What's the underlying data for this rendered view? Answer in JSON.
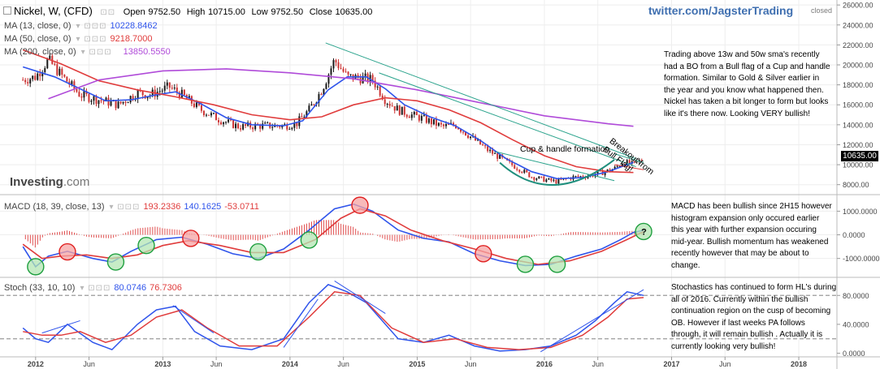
{
  "header": {
    "symbol": "Nickel, W, (CFD)",
    "open_label": "Open",
    "open": "9752.50",
    "high_label": "High",
    "high": "10715.00",
    "low_label": "Low",
    "low": "9752.50",
    "close_label": "Close",
    "close": "10635.00"
  },
  "twitter_handle": "twitter.com/JagsterTrading",
  "market_status": "closed",
  "logo": {
    "main": "Investing",
    "suffix": ".com"
  },
  "legends": {
    "ma13": {
      "label": "MA (13, close, 0)",
      "value": "10228.8462",
      "color": "#2f54eb"
    },
    "ma50": {
      "label": "MA (50, close, 0)",
      "value": "9218.7000",
      "color": "#e03c3c"
    },
    "ma200": {
      "label": "MA (200, close, 0)",
      "value": "13850.5550",
      "color": "#b04bd9"
    },
    "macd": {
      "label": "MACD (18, 39, close, 13)",
      "v1": "193.2336",
      "v2": "140.1625",
      "v3": "-53.0711"
    },
    "stoch": {
      "label": "Stoch (33, 10, 10)",
      "v1": "80.0746",
      "v2": "76.7306"
    }
  },
  "annotations": {
    "main_note": "Trading above 13w and 50w sma's recently had a BO from a Bull flag of a Cup and handle formation. Similar to Gold & Silver earlier in the year and you know what happened then. Nickel has taken a bit longer to form but looks like it's there now. Looking VERY bullish!",
    "macd_note": "MACD has been bullish since 2H15 however histogram expansion only occured earlier this year with further expansion occuring  mid-year. Bullish momentum has weakened recently however that may be about to change.",
    "stoch_note": "Stochastics has continued to form HL's during all of 2016. Currently within the bullish continuation region on the cusp of becoming OB. However if last weeks PA follows through, it will remain bullish . Actually it is currently looking very bullish!",
    "cup_label": "Cup & handle formation",
    "breakout_label": "Breakout from Bull Flag!",
    "question_mark": "?"
  },
  "price_label": "10635.00",
  "colors": {
    "bull": "#1a1a1a",
    "bear": "#cc3333",
    "ma13": "#2f54eb",
    "ma50": "#e03c3c",
    "ma200": "#b04bd9",
    "trend": "#2aa38c",
    "cup": "#1f8f7d",
    "circle_red_fill": "#f5a3a3",
    "circle_red_edge": "#e02020",
    "circle_green_fill": "#b3e6b3",
    "circle_green_edge": "#1f9f3f"
  },
  "chart_data": [
    {
      "type": "candlestick",
      "title": "Nickel, W, (CFD)",
      "x_ticks": [
        "2012",
        "Jun",
        "2013",
        "Jun",
        "2014",
        "Jun",
        "2015",
        "Jun",
        "2016",
        "Jun",
        "2017",
        "Jun",
        "2018"
      ],
      "y_ticks": [
        "26000.00",
        "24000.00",
        "22000.00",
        "20000.00",
        "18000.00",
        "16000.00",
        "14000.00",
        "12000.00",
        "10000.00",
        "8000.00"
      ],
      "ylim": [
        7000,
        26500
      ],
      "close_path_approx": [
        [
          2011.9,
          18500
        ],
        [
          2012.0,
          18800
        ],
        [
          2012.1,
          20500
        ],
        [
          2012.2,
          19000
        ],
        [
          2012.35,
          17000
        ],
        [
          2012.5,
          16500
        ],
        [
          2012.65,
          16000
        ],
        [
          2012.8,
          17200
        ],
        [
          2012.9,
          17000
        ],
        [
          2013.05,
          17800
        ],
        [
          2013.15,
          17000
        ],
        [
          2013.3,
          15500
        ],
        [
          2013.45,
          14500
        ],
        [
          2013.6,
          13800
        ],
        [
          2013.75,
          13900
        ],
        [
          2013.95,
          13900
        ],
        [
          2014.05,
          14100
        ],
        [
          2014.15,
          15500
        ],
        [
          2014.25,
          17500
        ],
        [
          2014.35,
          20500
        ],
        [
          2014.45,
          18800
        ],
        [
          2014.55,
          18700
        ],
        [
          2014.65,
          18500
        ],
        [
          2014.75,
          16500
        ],
        [
          2014.85,
          15500
        ],
        [
          2014.95,
          15000
        ],
        [
          2015.05,
          14600
        ],
        [
          2015.2,
          13800
        ],
        [
          2015.3,
          14000
        ],
        [
          2015.4,
          13000
        ],
        [
          2015.55,
          11500
        ],
        [
          2015.7,
          10300
        ],
        [
          2015.8,
          9600
        ],
        [
          2015.9,
          8800
        ],
        [
          2016.0,
          8500
        ],
        [
          2016.1,
          8300
        ],
        [
          2016.2,
          8700
        ],
        [
          2016.35,
          8900
        ],
        [
          2016.45,
          9200
        ],
        [
          2016.55,
          9600
        ],
        [
          2016.62,
          10300
        ],
        [
          2016.7,
          10000
        ],
        [
          2016.78,
          10635
        ]
      ],
      "series": [
        {
          "name": "MA (13, close, 0)",
          "points": [
            [
              2011.9,
              19800
            ],
            [
              2012.15,
              18800
            ],
            [
              2012.35,
              17600
            ],
            [
              2012.55,
              16400
            ],
            [
              2012.75,
              16500
            ],
            [
              2012.95,
              17000
            ],
            [
              2013.1,
              17300
            ],
            [
              2013.3,
              16100
            ],
            [
              2013.5,
              14700
            ],
            [
              2013.7,
              14000
            ],
            [
              2013.95,
              13900
            ],
            [
              2014.1,
              14400
            ],
            [
              2014.3,
              17500
            ],
            [
              2014.45,
              18800
            ],
            [
              2014.6,
              18800
            ],
            [
              2014.75,
              17600
            ],
            [
              2014.9,
              16000
            ],
            [
              2015.1,
              14800
            ],
            [
              2015.3,
              13900
            ],
            [
              2015.5,
              12400
            ],
            [
              2015.7,
              10600
            ],
            [
              2015.9,
              9300
            ],
            [
              2016.1,
              8600
            ],
            [
              2016.3,
              8700
            ],
            [
              2016.5,
              9300
            ],
            [
              2016.7,
              10229
            ]
          ]
        },
        {
          "name": "MA (50, close, 0)",
          "points": [
            [
              2011.9,
              21500
            ],
            [
              2012.2,
              20100
            ],
            [
              2012.5,
              18400
            ],
            [
              2012.8,
              17500
            ],
            [
              2013.1,
              16800
            ],
            [
              2013.4,
              16000
            ],
            [
              2013.7,
              15000
            ],
            [
              2014.0,
              14500
            ],
            [
              2014.25,
              14800
            ],
            [
              2014.5,
              16000
            ],
            [
              2014.75,
              16700
            ],
            [
              2015.0,
              16400
            ],
            [
              2015.25,
              15500
            ],
            [
              2015.5,
              14200
            ],
            [
              2015.75,
              12500
            ],
            [
              2016.0,
              10900
            ],
            [
              2016.25,
              9800
            ],
            [
              2016.5,
              9300
            ],
            [
              2016.7,
              9219
            ]
          ]
        },
        {
          "name": "MA (200, close, 0)",
          "points": [
            [
              2012.1,
              16600
            ],
            [
              2012.5,
              18500
            ],
            [
              2013.0,
              19400
            ],
            [
              2013.5,
              19600
            ],
            [
              2014.0,
              19200
            ],
            [
              2014.5,
              18600
            ],
            [
              2015.0,
              17500
            ],
            [
              2015.5,
              16200
            ],
            [
              2016.0,
              14900
            ],
            [
              2016.5,
              14100
            ],
            [
              2016.7,
              13851
            ]
          ]
        }
      ]
    },
    {
      "type": "line",
      "title": "MACD (18, 39, close, 13)",
      "y_ticks": [
        "1000.0000",
        "0.0000",
        "-1000.0000"
      ],
      "ylim": [
        -1800,
        1700
      ],
      "series": [
        {
          "name": "MACD",
          "points": [
            [
              2011.9,
              -500
            ],
            [
              2012.0,
              -1350
            ],
            [
              2012.1,
              -900
            ],
            [
              2012.25,
              -700
            ],
            [
              2012.45,
              -1000
            ],
            [
              2012.6,
              -1150
            ],
            [
              2012.75,
              -700
            ],
            [
              2012.95,
              -200
            ],
            [
              2013.15,
              -100
            ],
            [
              2013.35,
              -400
            ],
            [
              2013.55,
              -800
            ],
            [
              2013.75,
              -1000
            ],
            [
              2013.95,
              -600
            ],
            [
              2014.15,
              200
            ],
            [
              2014.35,
              1100
            ],
            [
              2014.5,
              1300
            ],
            [
              2014.65,
              1000
            ],
            [
              2014.85,
              200
            ],
            [
              2015.05,
              -150
            ],
            [
              2015.25,
              -300
            ],
            [
              2015.45,
              -800
            ],
            [
              2015.65,
              -1100
            ],
            [
              2015.85,
              -1300
            ],
            [
              2016.05,
              -1250
            ],
            [
              2016.25,
              -900
            ],
            [
              2016.45,
              -600
            ],
            [
              2016.6,
              -200
            ],
            [
              2016.7,
              100
            ],
            [
              2016.78,
              193
            ]
          ]
        },
        {
          "name": "Signal",
          "points": [
            [
              2011.9,
              -400
            ],
            [
              2012.05,
              -1000
            ],
            [
              2012.2,
              -900
            ],
            [
              2012.4,
              -850
            ],
            [
              2012.6,
              -1000
            ],
            [
              2012.8,
              -850
            ],
            [
              2013.0,
              -450
            ],
            [
              2013.2,
              -250
            ],
            [
              2013.45,
              -450
            ],
            [
              2013.7,
              -750
            ],
            [
              2013.95,
              -750
            ],
            [
              2014.2,
              -200
            ],
            [
              2014.4,
              700
            ],
            [
              2014.55,
              1100
            ],
            [
              2014.75,
              800
            ],
            [
              2014.95,
              200
            ],
            [
              2015.2,
              -250
            ],
            [
              2015.45,
              -600
            ],
            [
              2015.7,
              -1000
            ],
            [
              2015.95,
              -1250
            ],
            [
              2016.2,
              -1100
            ],
            [
              2016.45,
              -700
            ],
            [
              2016.65,
              -200
            ],
            [
              2016.78,
              140
            ]
          ]
        }
      ]
    },
    {
      "type": "line",
      "title": "Stoch (33, 10, 10)",
      "y_ticks": [
        "80.0000",
        "40.0000",
        "0.0000"
      ],
      "ylim": [
        -5,
        105
      ],
      "series": [
        {
          "name": "%K",
          "points": [
            [
              2011.9,
              35
            ],
            [
              2012.0,
              20
            ],
            [
              2012.1,
              15
            ],
            [
              2012.25,
              40
            ],
            [
              2012.45,
              15
            ],
            [
              2012.6,
              5
            ],
            [
              2012.8,
              40
            ],
            [
              2012.95,
              60
            ],
            [
              2013.1,
              65
            ],
            [
              2013.25,
              30
            ],
            [
              2013.45,
              10
            ],
            [
              2013.7,
              5
            ],
            [
              2013.95,
              20
            ],
            [
              2014.15,
              70
            ],
            [
              2014.3,
              95
            ],
            [
              2014.45,
              85
            ],
            [
              2014.6,
              70
            ],
            [
              2014.85,
              20
            ],
            [
              2015.05,
              15
            ],
            [
              2015.25,
              25
            ],
            [
              2015.45,
              10
            ],
            [
              2015.65,
              3
            ],
            [
              2015.85,
              5
            ],
            [
              2016.05,
              10
            ],
            [
              2016.25,
              25
            ],
            [
              2016.4,
              45
            ],
            [
              2016.55,
              70
            ],
            [
              2016.65,
              85
            ],
            [
              2016.78,
              80
            ]
          ]
        },
        {
          "name": "%D",
          "points": [
            [
              2011.9,
              30
            ],
            [
              2012.05,
              25
            ],
            [
              2012.2,
              25
            ],
            [
              2012.35,
              30
            ],
            [
              2012.55,
              15
            ],
            [
              2012.75,
              25
            ],
            [
              2012.95,
              50
            ],
            [
              2013.15,
              60
            ],
            [
              2013.35,
              35
            ],
            [
              2013.6,
              10
            ],
            [
              2013.9,
              10
            ],
            [
              2014.15,
              50
            ],
            [
              2014.35,
              85
            ],
            [
              2014.55,
              80
            ],
            [
              2014.8,
              35
            ],
            [
              2015.05,
              15
            ],
            [
              2015.3,
              20
            ],
            [
              2015.55,
              8
            ],
            [
              2015.8,
              5
            ],
            [
              2016.05,
              8
            ],
            [
              2016.3,
              25
            ],
            [
              2016.5,
              50
            ],
            [
              2016.65,
              75
            ],
            [
              2016.78,
              77
            ]
          ]
        }
      ]
    }
  ]
}
